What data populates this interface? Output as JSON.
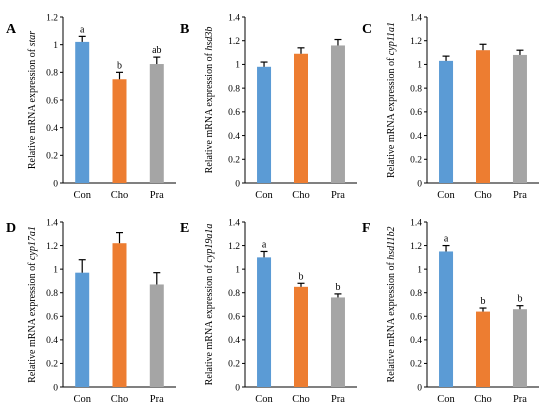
{
  "colors": {
    "Con": "#5b9bd5",
    "Cho": "#ed7d31",
    "Pra": "#a5a5a5"
  },
  "chart_data": [
    {
      "type": "bar",
      "panel": "A",
      "ylabel_prefix": "Relative mRNA expression of ",
      "gene": "star",
      "categories": [
        "Con",
        "Cho",
        "Pra"
      ],
      "values": [
        1.02,
        0.75,
        0.86
      ],
      "errors": [
        0.04,
        0.05,
        0.05
      ],
      "letters": [
        "a",
        "b",
        "ab"
      ],
      "ylim": [
        0,
        1.2
      ],
      "yticks": [
        "0",
        "0.2",
        "0.4",
        "0.6",
        "0.8",
        "1",
        "1.2"
      ]
    },
    {
      "type": "bar",
      "panel": "B",
      "ylabel_prefix": "Relative mRNA expression of ",
      "gene": "hsd3b",
      "categories": [
        "Con",
        "Cho",
        "Pra"
      ],
      "values": [
        0.98,
        1.09,
        1.16
      ],
      "errors": [
        0.04,
        0.05,
        0.05
      ],
      "letters": [
        "",
        "",
        ""
      ],
      "ylim": [
        0,
        1.4
      ],
      "yticks": [
        "0",
        "0.2",
        "0.4",
        "0.6",
        "0.8",
        "1",
        "1.2",
        "1.4"
      ]
    },
    {
      "type": "bar",
      "panel": "C",
      "ylabel_prefix": "Relative mRNA expression of ",
      "gene": "cyp11a1",
      "categories": [
        "Con",
        "Cho",
        "Pra"
      ],
      "values": [
        1.03,
        1.12,
        1.08
      ],
      "errors": [
        0.04,
        0.05,
        0.04
      ],
      "letters": [
        "",
        "",
        ""
      ],
      "ylim": [
        0,
        1.4
      ],
      "yticks": [
        "0",
        "0.2",
        "0.4",
        "0.6",
        "0.8",
        "1",
        "1.2",
        "1.4"
      ]
    },
    {
      "type": "bar",
      "panel": "D",
      "ylabel_prefix": "Relative mRNA expression of ",
      "gene": "cyp17a1",
      "categories": [
        "Con",
        "Cho",
        "Pra"
      ],
      "values": [
        0.97,
        1.22,
        0.87
      ],
      "errors": [
        0.11,
        0.09,
        0.1
      ],
      "letters": [
        "",
        "",
        ""
      ],
      "ylim": [
        0,
        1.4
      ],
      "yticks": [
        "0",
        "0.2",
        "0.4",
        "0.6",
        "0.8",
        "1",
        "1.2",
        "1.4"
      ]
    },
    {
      "type": "bar",
      "panel": "E",
      "ylabel_prefix": "Relative mRNA expression of ",
      "gene": "cyp19a1a",
      "categories": [
        "Con",
        "Cho",
        "Pra"
      ],
      "values": [
        1.1,
        0.85,
        0.76
      ],
      "errors": [
        0.05,
        0.03,
        0.03
      ],
      "letters": [
        "a",
        "b",
        "b"
      ],
      "ylim": [
        0,
        1.4
      ],
      "yticks": [
        "0",
        "0.2",
        "0.4",
        "0.6",
        "0.8",
        "1",
        "1.2",
        "1.4"
      ]
    },
    {
      "type": "bar",
      "panel": "F",
      "ylabel_prefix": "Relative mRNA expression of ",
      "gene": "hsd11b2",
      "categories": [
        "Con",
        "Cho",
        "Pra"
      ],
      "values": [
        1.15,
        0.64,
        0.66
      ],
      "errors": [
        0.05,
        0.03,
        0.03
      ],
      "letters": [
        "a",
        "b",
        "b"
      ],
      "ylim": [
        0,
        1.4
      ],
      "yticks": [
        "0",
        "0.2",
        "0.4",
        "0.6",
        "0.8",
        "1",
        "1.2",
        "1.4"
      ]
    }
  ]
}
